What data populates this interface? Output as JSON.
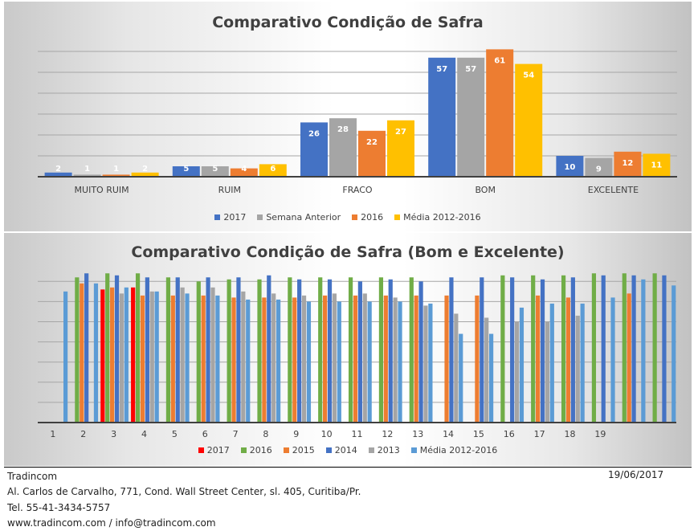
{
  "chart_data": [
    {
      "type": "bar",
      "title": "Comparativo Condição de Safra",
      "xlabel": "",
      "ylabel": "",
      "ylim": [
        0,
        60
      ],
      "grid": true,
      "legend_position": "bottom",
      "categories": [
        "MUITO RUIM",
        "RUIM",
        "FRACO",
        "BOM",
        "EXCELENTE"
      ],
      "series": [
        {
          "name": "2017",
          "color": "#4472c4",
          "values": [
            2,
            5,
            26,
            57,
            10
          ]
        },
        {
          "name": "Semana Anterior",
          "color": "#a5a5a5",
          "values": [
            1,
            5,
            28,
            57,
            9
          ]
        },
        {
          "name": "2016",
          "color": "#ed7d31",
          "values": [
            1,
            4,
            22,
            61,
            12
          ]
        },
        {
          "name": "Média 2012-2016",
          "color": "#ffc000",
          "values": [
            2,
            6,
            27,
            54,
            11
          ]
        }
      ],
      "data_labels": true
    },
    {
      "type": "bar",
      "title": "Comparativo Condição de Safra (Bom e Excelente)",
      "xlabel": "",
      "ylabel": "",
      "ylim": [
        0,
        70
      ],
      "grid": true,
      "legend_position": "bottom",
      "categories": [
        "1",
        "2",
        "3",
        "4",
        "5",
        "6",
        "7",
        "8",
        "9",
        "10",
        "11",
        "12",
        "13",
        "14",
        "15",
        "16",
        "17",
        "18",
        "19",
        "",
        ""
      ],
      "series": [
        {
          "name": "2017",
          "color": "#ff0000",
          "values": [
            null,
            null,
            66,
            67,
            null,
            null,
            null,
            null,
            null,
            null,
            null,
            null,
            null,
            null,
            null,
            null,
            null,
            null,
            null,
            null,
            null
          ]
        },
        {
          "name": "2016",
          "color": "#70ad47",
          "values": [
            null,
            72,
            74,
            74,
            72,
            70,
            71,
            71,
            72,
            72,
            72,
            72,
            72,
            null,
            null,
            73,
            73,
            73,
            74,
            74,
            74
          ]
        },
        {
          "name": "2015",
          "color": "#ed7d31",
          "values": [
            null,
            69,
            67,
            63,
            63,
            63,
            62,
            62,
            62,
            63,
            63,
            63,
            63,
            63,
            63,
            null,
            63,
            62,
            null,
            64,
            null
          ]
        },
        {
          "name": "2014",
          "color": "#4472c4",
          "values": [
            null,
            74,
            73,
            72,
            72,
            72,
            72,
            73,
            71,
            71,
            70,
            71,
            70,
            72,
            72,
            72,
            71,
            72,
            73,
            73,
            73
          ]
        },
        {
          "name": "2013",
          "color": "#a5a5a5",
          "values": [
            null,
            null,
            64,
            65,
            67,
            67,
            65,
            64,
            63,
            64,
            64,
            62,
            58,
            54,
            52,
            50,
            50,
            53,
            null,
            null,
            null
          ]
        },
        {
          "name": "Média 2012-2016",
          "color": "#5b9bd5",
          "values": [
            65,
            69,
            67,
            65,
            64,
            63,
            61,
            61,
            60,
            60,
            60,
            60,
            59,
            44,
            44,
            57,
            59,
            59,
            62,
            71,
            68
          ]
        }
      ]
    }
  ],
  "footer": {
    "company": "Tradincom",
    "address": "Al. Carlos de Carvalho, 771, Cond. Wall Street Center, sl. 405, Curitiba/Pr.",
    "phone": "Tel. 55-41-3434-5757",
    "web": "www.tradincom.com / info@tradincom.com",
    "date": "19/06/2017"
  }
}
